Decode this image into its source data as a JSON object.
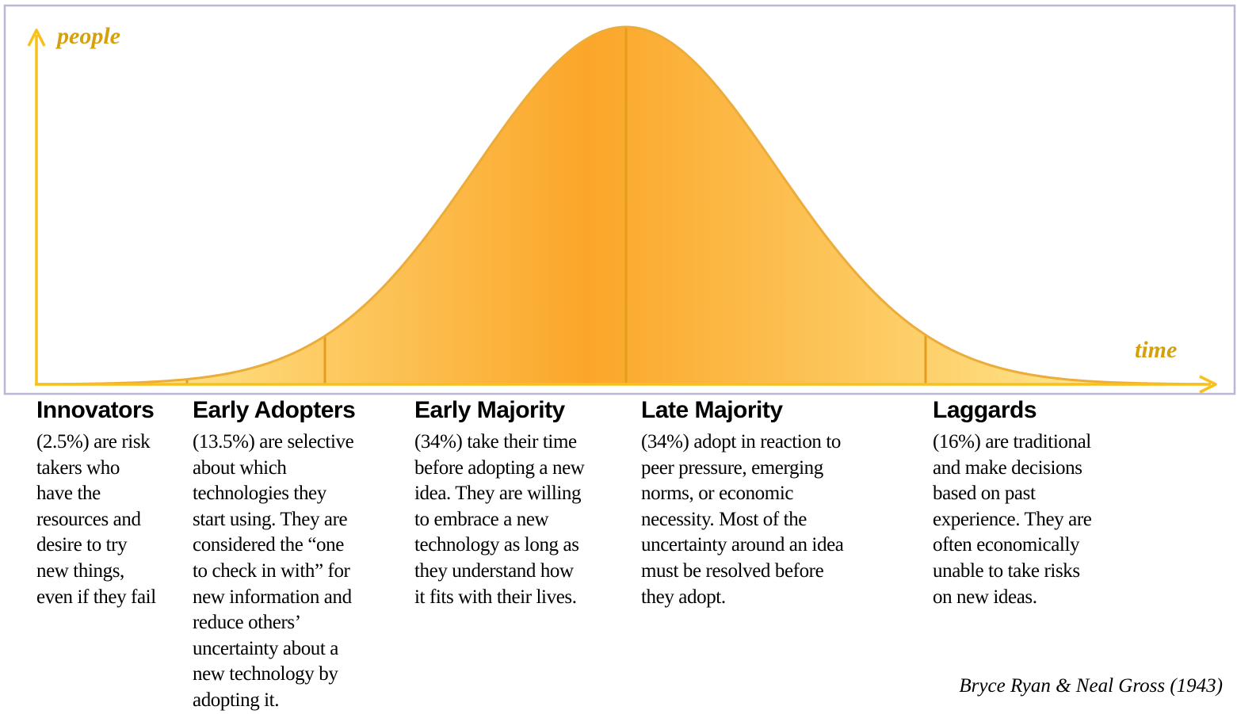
{
  "axes": {
    "y_label": "people",
    "x_label": "time"
  },
  "colors": {
    "frame": "#b9b7d6",
    "axis": "#f7c11a",
    "curve_edge": "#ecac3a",
    "fill_light": "#fff3a2",
    "fill_dark": "#fba629",
    "divider": "#e49e1c"
  },
  "segments": [
    {
      "title": "Innovators",
      "description_lines": [
        "(2.5%) are risk",
        "takers who",
        "have the",
        "resources and",
        "desire to try",
        "new things,",
        "even if they fail"
      ]
    },
    {
      "title": "Early Adopters",
      "description_lines": [
        "(13.5%) are selective",
        "about which",
        "technologies they",
        "start using. They are",
        "considered the “one",
        "to check in with” for",
        "new information and",
        "reduce others’",
        "uncertainty about a",
        "new technology by",
        "adopting it."
      ]
    },
    {
      "title": "Early Majority",
      "description_lines": [
        "(34%) take their time",
        "before adopting a new",
        "idea. They are willing",
        "to embrace a new",
        "technology as long as",
        "they understand how",
        "it fits with their lives."
      ]
    },
    {
      "title": "Late Majority",
      "description_lines": [
        "(34%) adopt in reaction to",
        "peer pressure, emerging",
        "norms, or economic",
        "necessity. Most of the",
        "uncertainty around an idea",
        "must be resolved before",
        "they adopt."
      ]
    },
    {
      "title": "Laggards",
      "description_lines": [
        "(16%) are traditional",
        "and make decisions",
        "based on past",
        "experience. They are",
        "often economically",
        "unable to take risks",
        "on new ideas."
      ]
    }
  ],
  "citation": "Bryce Ryan & Neal Gross (1943)"
}
